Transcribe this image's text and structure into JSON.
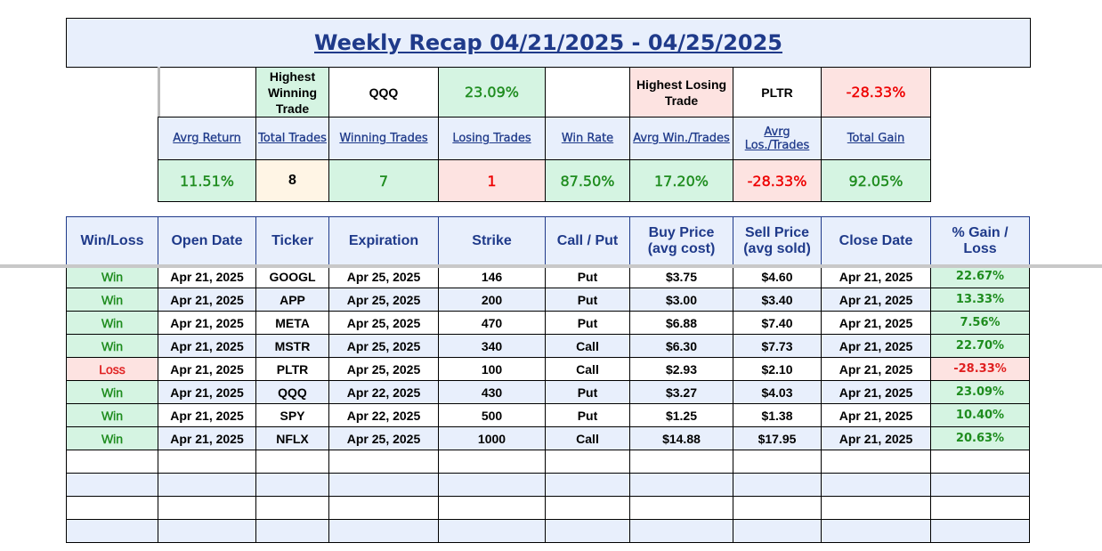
{
  "title": "Weekly Recap 04/21/2025 - 04/25/2025",
  "summary": {
    "highest_winning_label": "Highest Winning Trade",
    "highest_winning_ticker": "QQQ",
    "highest_winning_value": "23.09%",
    "highest_losing_label": "Highest Losing Trade",
    "highest_losing_ticker": "PLTR",
    "highest_losing_value": "-28.33%",
    "labels": [
      "Avrg Return",
      "Total Trades",
      "Winning Trades",
      "Losing Trades",
      "Win Rate",
      "Avrg Win./Trades",
      "Avrg Los./Trades",
      "Total Gain"
    ],
    "values": [
      "11.51%",
      "8",
      "7",
      "1",
      "87.50%",
      "17.20%",
      "-28.33%",
      "92.05%"
    ]
  },
  "colors": {
    "header_blue": "#1f3a8a",
    "win_green": "#1e8c1e",
    "loss_red": "#ee0000",
    "win_bg": "#d5f4e2",
    "loss_bg": "#fde3e1",
    "header_bg": "#e8effc"
  },
  "table": {
    "headers": [
      "Win/Loss",
      "Open Date",
      "Ticker",
      "Expiration",
      "Strike",
      "Call / Put",
      "Buy Price (avg cost)",
      "Sell Price (avg sold)",
      "Close Date",
      "% Gain / Loss"
    ],
    "rows": [
      [
        "Win",
        "Apr 21, 2025",
        "GOOGL",
        "Apr 25, 2025",
        "146",
        "Put",
        "$3.75",
        "$4.60",
        "Apr 21, 2025",
        "22.67%"
      ],
      [
        "Win",
        "Apr 21, 2025",
        "APP",
        "Apr 25, 2025",
        "200",
        "Put",
        "$3.00",
        "$3.40",
        "Apr 21, 2025",
        "13.33%"
      ],
      [
        "Win",
        "Apr 21, 2025",
        "META",
        "Apr 25, 2025",
        "470",
        "Put",
        "$6.88",
        "$7.40",
        "Apr 21, 2025",
        "7.56%"
      ],
      [
        "Win",
        "Apr 21, 2025",
        "MSTR",
        "Apr 25, 2025",
        "340",
        "Call",
        "$6.30",
        "$7.73",
        "Apr 21, 2025",
        "22.70%"
      ],
      [
        "Loss",
        "Apr 21, 2025",
        "PLTR",
        "Apr 25, 2025",
        "100",
        "Call",
        "$2.93",
        "$2.10",
        "Apr 21, 2025",
        "-28.33%"
      ],
      [
        "Win",
        "Apr 21, 2025",
        "QQQ",
        "Apr 22, 2025",
        "430",
        "Put",
        "$3.27",
        "$4.03",
        "Apr 21, 2025",
        "23.09%"
      ],
      [
        "Win",
        "Apr 21, 2025",
        "SPY",
        "Apr 22, 2025",
        "500",
        "Put",
        "$1.25",
        "$1.38",
        "Apr 21, 2025",
        "10.40%"
      ],
      [
        "Win",
        "Apr 21, 2025",
        "NFLX",
        "Apr 25, 2025",
        "1000",
        "Call",
        "$14.88",
        "$17.95",
        "Apr 21, 2025",
        "20.63%"
      ]
    ],
    "empty_rows": 4
  }
}
